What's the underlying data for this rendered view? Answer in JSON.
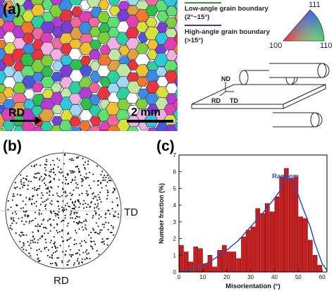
{
  "panel_a": {
    "label": "(a)",
    "rd_label": "RD",
    "scale_label": "2 mm",
    "legend": {
      "low_angle": {
        "title": "Low-angle grain boundary",
        "range": "(2°~15°)",
        "color": "#2e9d2e"
      },
      "high_angle": {
        "title": "High-angle grain boundary",
        "range": "(>15°)",
        "color": "#3a3aa0"
      }
    },
    "ipf_key": {
      "top": "111",
      "left": "100",
      "right": "110"
    },
    "rolling_diagram": {
      "nd": "ND",
      "rd": "RD",
      "td": "TD"
    }
  },
  "panel_b": {
    "label": "(b)",
    "td_label": "TD",
    "rd_label": "RD"
  },
  "panel_c": {
    "label": "(c)",
    "random_label": "Random",
    "colors": {
      "bar": "#c81e1e",
      "curve": "#2b4fb0"
    }
  },
  "chart_data": {
    "type": "bar",
    "xlabel": "Misorientation (°)",
    "ylabel": "Number fraction (%)",
    "xlim": [
      0,
      62
    ],
    "ylim": [
      0,
      7
    ],
    "xticks": [
      0,
      10,
      20,
      30,
      40,
      50,
      60
    ],
    "yticks": [
      0,
      1,
      2,
      3,
      4,
      5,
      6,
      7
    ],
    "bin_width": 2,
    "x": [
      1,
      3,
      5,
      7,
      9,
      11,
      13,
      15,
      17,
      19,
      21,
      23,
      25,
      27,
      29,
      31,
      33,
      35,
      37,
      39,
      41,
      43,
      45,
      47,
      49,
      51,
      53,
      55,
      57,
      59
    ],
    "values": [
      1.6,
      1.2,
      0.6,
      1.5,
      1.4,
      0.5,
      1.0,
      0.3,
      1.3,
      1.6,
      1.2,
      1.2,
      0.8,
      2.1,
      2.5,
      2.7,
      3.8,
      3.5,
      4.1,
      3.6,
      4.5,
      5.7,
      6.2,
      5.6,
      5.7,
      3.3,
      3.2,
      1.9,
      1.0,
      0.4
    ],
    "series": [
      {
        "name": "Random",
        "type": "line",
        "x": [
          0,
          5,
          10,
          15,
          20,
          25,
          30,
          35,
          40,
          42,
          45,
          47,
          50,
          52,
          55,
          57,
          60,
          62
        ],
        "y": [
          0,
          0.15,
          0.4,
          0.8,
          1.3,
          1.9,
          2.7,
          3.5,
          4.4,
          4.8,
          5.7,
          5.5,
          4.6,
          3.8,
          2.7,
          1.7,
          0.5,
          0.1
        ]
      }
    ]
  }
}
